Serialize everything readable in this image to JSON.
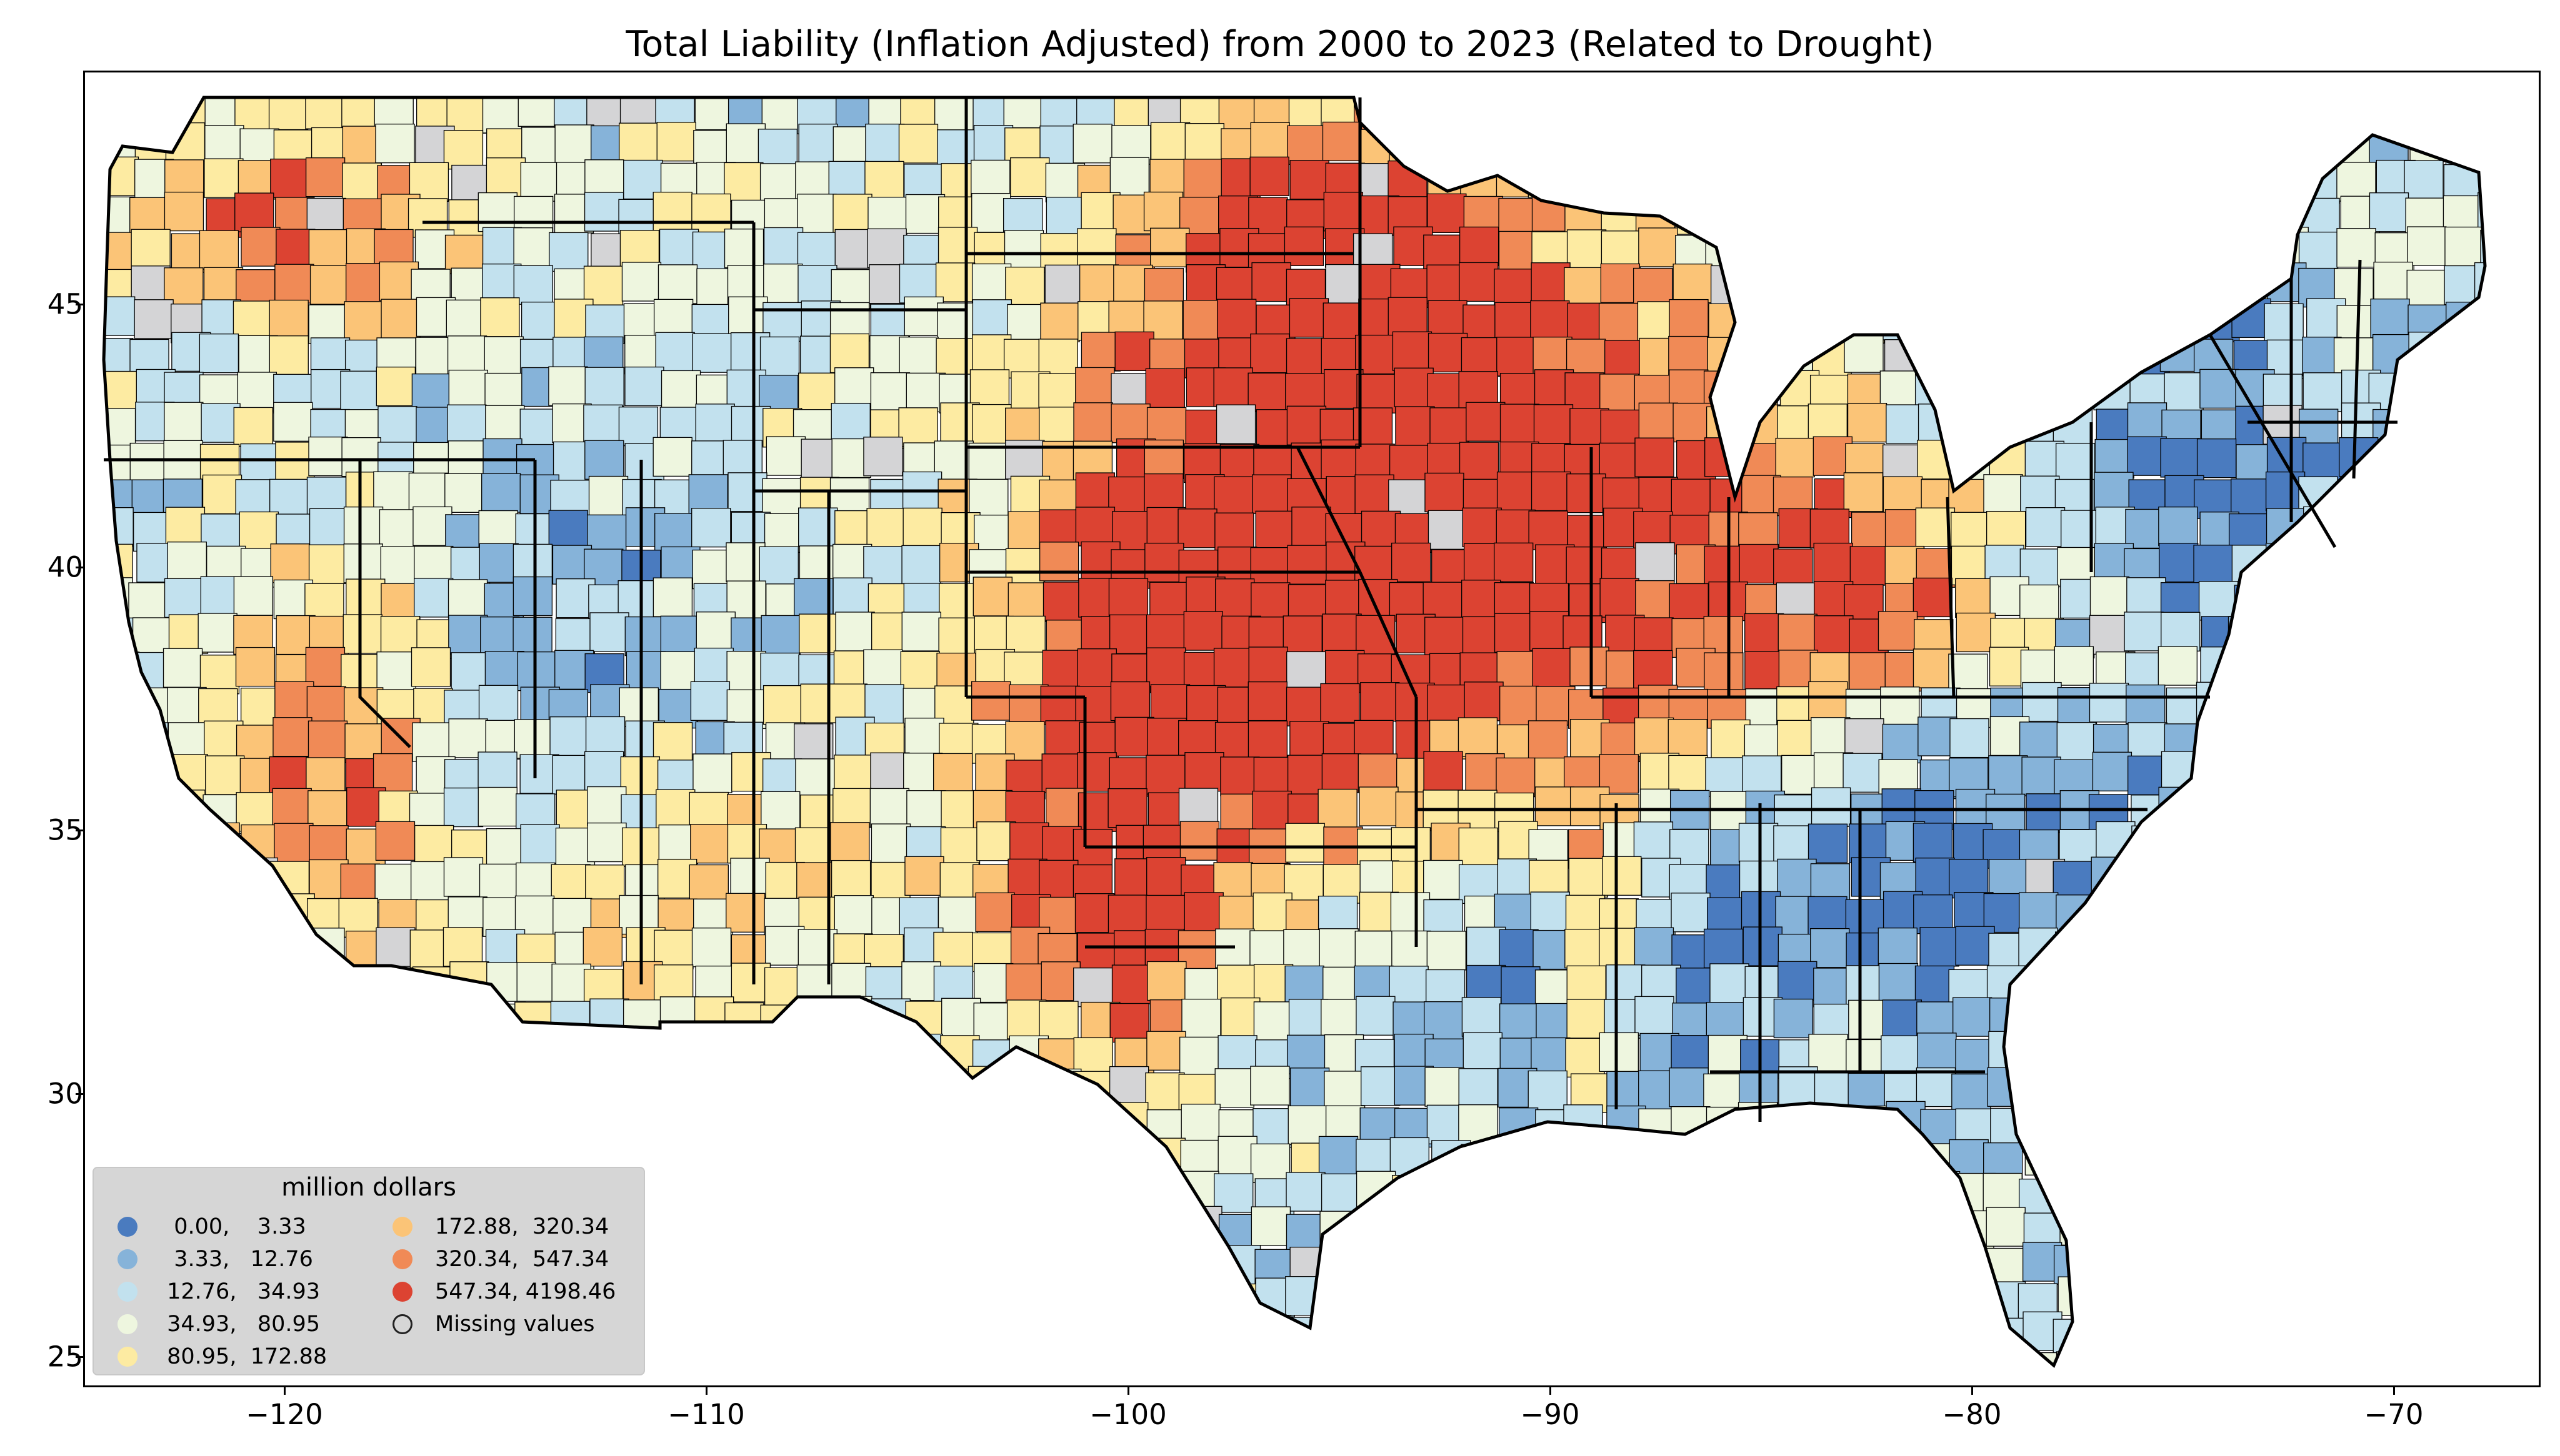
{
  "title": "Total Liability  (Inflation Adjusted) from 2000 to 2023 (Related to Drought)",
  "axes": {
    "y_ticks": [
      "45",
      "40",
      "35",
      "30",
      "25"
    ],
    "x_ticks": [
      "−120",
      "−110",
      "−100",
      "−90",
      "−80",
      "−70"
    ],
    "lon_range": [
      -124.8,
      -66.8
    ],
    "lat_range": [
      24.5,
      49.4
    ]
  },
  "legend": {
    "title": "million dollars",
    "items": [
      {
        "label": "  0.00,    3.33",
        "color": "#4a7bbf"
      },
      {
        "label": "  3.33,   12.76",
        "color": "#86b3d9"
      },
      {
        "label": " 12.76,   34.93",
        "color": "#c2e1ee"
      },
      {
        "label": " 34.93,   80.95",
        "color": "#eef6df"
      },
      {
        "label": " 80.95,  172.88",
        "color": "#fdeba2"
      },
      {
        "label": "172.88,  320.34",
        "color": "#fbc477"
      },
      {
        "label": "320.34,  547.34",
        "color": "#f08a56"
      },
      {
        "label": "547.34, 4198.46",
        "color": "#dc4332"
      },
      {
        "label": "Missing values",
        "color": "#d4d4d6"
      }
    ]
  }
}
